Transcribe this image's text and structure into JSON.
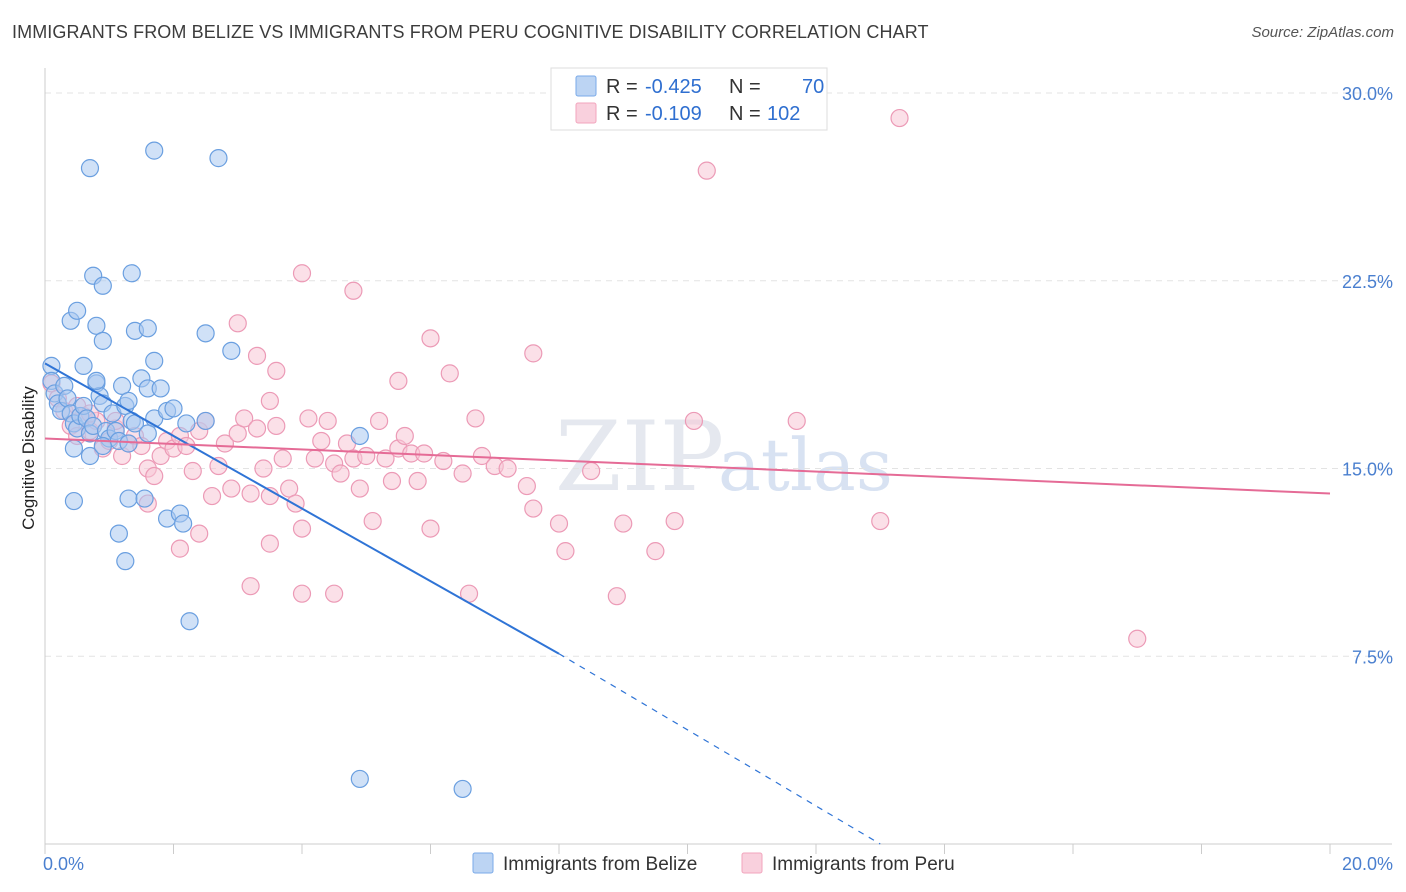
{
  "title": "IMMIGRANTS FROM BELIZE VS IMMIGRANTS FROM PERU COGNITIVE DISABILITY CORRELATION CHART",
  "source": "Source: ZipAtlas.com",
  "watermark": {
    "zip": "ZIP",
    "atlas": "atlas"
  },
  "legend_top": [
    {
      "r_label": "R = ",
      "r_value": "-0.425",
      "n_label": "N = ",
      "n_value": "70",
      "color": "#7aaae8"
    },
    {
      "r_label": "R = ",
      "r_value": "-0.109",
      "n_label": "N = ",
      "n_value": "102",
      "color": "#f2a5bd"
    }
  ],
  "legend_bottom": [
    {
      "label": "Immigrants from Belize",
      "color": "#7aaae8"
    },
    {
      "label": "Immigrants from Peru",
      "color": "#f2a5bd"
    }
  ],
  "colors": {
    "belize_fill": "#a9c8f0",
    "belize_stroke": "#6a9fe0",
    "belize_line": "#2f74d6",
    "peru_fill": "#f7c6d5",
    "peru_stroke": "#ec9ab6",
    "peru_line": "#e56b96",
    "grid": "#e3e3e3",
    "tick_text": "#4a7fcf"
  },
  "chart_data": {
    "type": "scatter",
    "title": "IMMIGRANTS FROM BELIZE VS IMMIGRANTS FROM PERU COGNITIVE DISABILITY CORRELATION CHART",
    "xlabel": "",
    "ylabel": "Cognitive Disability",
    "xlim": [
      0,
      20
    ],
    "ylim": [
      0,
      31
    ],
    "x_tick_labels": [
      {
        "value": 0,
        "label": "0.0%"
      },
      {
        "value": 20,
        "label": "20.0%"
      }
    ],
    "y_tick_labels": [
      {
        "value": 7.5,
        "label": "7.5%"
      },
      {
        "value": 15,
        "label": "15.0%"
      },
      {
        "value": 22.5,
        "label": "22.5%"
      },
      {
        "value": 30,
        "label": "30.0%"
      }
    ],
    "series": [
      {
        "name": "Immigrants from Belize",
        "R": -0.425,
        "N": 70,
        "trend": {
          "x0": 0,
          "y0": 19.2,
          "x1": 8.0,
          "y1": 7.6,
          "dash_x1": 13.0,
          "dash_y1": 0.0
        },
        "points": [
          [
            0.1,
            19.1
          ],
          [
            0.1,
            18.5
          ],
          [
            0.15,
            18.0
          ],
          [
            0.2,
            17.6
          ],
          [
            0.25,
            17.3
          ],
          [
            0.3,
            18.3
          ],
          [
            0.35,
            17.8
          ],
          [
            0.4,
            17.2
          ],
          [
            0.45,
            16.8
          ],
          [
            0.5,
            16.6
          ],
          [
            0.55,
            17.1
          ],
          [
            0.6,
            17.5
          ],
          [
            0.65,
            17.0
          ],
          [
            0.7,
            16.4
          ],
          [
            0.75,
            16.7
          ],
          [
            0.8,
            18.4
          ],
          [
            0.85,
            17.9
          ],
          [
            0.9,
            17.6
          ],
          [
            0.95,
            16.5
          ],
          [
            1.0,
            16.2
          ],
          [
            1.05,
            17.2
          ],
          [
            1.1,
            16.5
          ],
          [
            1.15,
            16.1
          ],
          [
            1.2,
            18.3
          ],
          [
            1.25,
            17.5
          ],
          [
            1.3,
            17.7
          ],
          [
            1.35,
            16.9
          ],
          [
            1.4,
            16.8
          ],
          [
            1.5,
            18.6
          ],
          [
            1.6,
            18.2
          ],
          [
            1.7,
            17.0
          ],
          [
            1.8,
            18.2
          ],
          [
            1.9,
            17.3
          ],
          [
            2.0,
            17.4
          ],
          [
            2.2,
            16.8
          ],
          [
            2.5,
            16.9
          ],
          [
            0.6,
            19.1
          ],
          [
            0.8,
            18.5
          ],
          [
            0.4,
            20.9
          ],
          [
            0.5,
            21.3
          ],
          [
            0.8,
            20.7
          ],
          [
            0.9,
            20.1
          ],
          [
            1.4,
            20.5
          ],
          [
            1.6,
            20.6
          ],
          [
            1.7,
            19.3
          ],
          [
            2.5,
            20.4
          ],
          [
            2.9,
            19.7
          ],
          [
            0.75,
            22.7
          ],
          [
            0.9,
            22.3
          ],
          [
            1.35,
            22.8
          ],
          [
            0.7,
            27.0
          ],
          [
            1.7,
            27.7
          ],
          [
            2.7,
            27.4
          ],
          [
            0.45,
            15.8
          ],
          [
            0.7,
            15.5
          ],
          [
            0.9,
            15.9
          ],
          [
            1.3,
            16.0
          ],
          [
            1.6,
            16.4
          ],
          [
            0.45,
            13.7
          ],
          [
            1.3,
            13.8
          ],
          [
            1.55,
            13.8
          ],
          [
            1.9,
            13.0
          ],
          [
            2.1,
            13.2
          ],
          [
            2.15,
            12.8
          ],
          [
            1.15,
            12.4
          ],
          [
            1.25,
            11.3
          ],
          [
            2.25,
            8.9
          ],
          [
            4.9,
            16.3
          ],
          [
            4.9,
            2.6
          ],
          [
            6.5,
            2.2
          ]
        ]
      },
      {
        "name": "Immigrants from Peru",
        "R": -0.109,
        "N": 102,
        "trend": {
          "x0": 0,
          "y0": 16.2,
          "x1": 20.0,
          "y1": 14.0
        },
        "points": [
          [
            0.1,
            18.4
          ],
          [
            0.2,
            17.8
          ],
          [
            0.3,
            17.3
          ],
          [
            0.4,
            16.7
          ],
          [
            0.5,
            16.3
          ],
          [
            0.6,
            17.1
          ],
          [
            0.7,
            16.5
          ],
          [
            0.8,
            16.9
          ],
          [
            0.9,
            15.8
          ],
          [
            1.0,
            16.1
          ],
          [
            1.1,
            16.6
          ],
          [
            1.2,
            15.5
          ],
          [
            1.3,
            16.0
          ],
          [
            1.4,
            16.3
          ],
          [
            1.5,
            15.9
          ],
          [
            1.6,
            15.0
          ],
          [
            1.7,
            14.7
          ],
          [
            1.8,
            15.5
          ],
          [
            1.9,
            16.1
          ],
          [
            2.0,
            15.8
          ],
          [
            2.1,
            16.3
          ],
          [
            2.2,
            15.9
          ],
          [
            2.3,
            14.9
          ],
          [
            2.4,
            16.5
          ],
          [
            2.5,
            16.9
          ],
          [
            2.6,
            13.9
          ],
          [
            2.7,
            15.1
          ],
          [
            2.8,
            16.0
          ],
          [
            2.9,
            14.2
          ],
          [
            3.0,
            16.4
          ],
          [
            3.1,
            17.0
          ],
          [
            3.2,
            14.0
          ],
          [
            3.3,
            16.6
          ],
          [
            3.4,
            15.0
          ],
          [
            3.5,
            13.9
          ],
          [
            3.6,
            16.7
          ],
          [
            3.7,
            15.4
          ],
          [
            3.8,
            14.2
          ],
          [
            3.9,
            13.6
          ],
          [
            4.0,
            12.6
          ],
          [
            4.1,
            17.0
          ],
          [
            4.2,
            15.4
          ],
          [
            4.3,
            16.1
          ],
          [
            4.4,
            16.9
          ],
          [
            4.5,
            15.2
          ],
          [
            4.6,
            14.8
          ],
          [
            4.7,
            16.0
          ],
          [
            4.8,
            15.4
          ],
          [
            4.9,
            14.2
          ],
          [
            5.0,
            15.5
          ],
          [
            5.1,
            12.9
          ],
          [
            5.2,
            16.9
          ],
          [
            5.3,
            15.4
          ],
          [
            5.4,
            14.5
          ],
          [
            5.5,
            15.8
          ],
          [
            5.6,
            16.3
          ],
          [
            5.7,
            15.6
          ],
          [
            5.8,
            14.5
          ],
          [
            5.9,
            15.6
          ],
          [
            6.0,
            12.6
          ],
          [
            6.2,
            15.3
          ],
          [
            6.5,
            14.8
          ],
          [
            6.7,
            17.0
          ],
          [
            6.8,
            15.5
          ],
          [
            7.0,
            15.1
          ],
          [
            7.2,
            15.0
          ],
          [
            7.5,
            14.3
          ],
          [
            7.6,
            13.4
          ],
          [
            8.0,
            12.8
          ],
          [
            8.1,
            11.7
          ],
          [
            8.5,
            14.9
          ],
          [
            9.0,
            12.8
          ],
          [
            9.5,
            11.7
          ],
          [
            9.8,
            12.9
          ],
          [
            10.1,
            16.9
          ],
          [
            1.6,
            13.6
          ],
          [
            2.1,
            11.8
          ],
          [
            3.0,
            20.8
          ],
          [
            3.3,
            19.5
          ],
          [
            3.6,
            18.9
          ],
          [
            3.5,
            17.7
          ],
          [
            4.0,
            22.8
          ],
          [
            4.8,
            22.1
          ],
          [
            5.5,
            18.5
          ],
          [
            6.0,
            20.2
          ],
          [
            6.3,
            18.8
          ],
          [
            7.6,
            19.6
          ],
          [
            3.2,
            10.3
          ],
          [
            4.0,
            10.0
          ],
          [
            3.5,
            12.0
          ],
          [
            4.5,
            10.0
          ],
          [
            6.6,
            10.0
          ],
          [
            8.9,
            9.9
          ],
          [
            0.5,
            17.5
          ],
          [
            0.7,
            17.2
          ],
          [
            1.1,
            16.9
          ],
          [
            2.4,
            12.4
          ],
          [
            11.7,
            16.9
          ],
          [
            13.0,
            12.9
          ],
          [
            17.0,
            8.2
          ],
          [
            10.3,
            26.9
          ],
          [
            13.3,
            29.0
          ]
        ]
      }
    ]
  }
}
